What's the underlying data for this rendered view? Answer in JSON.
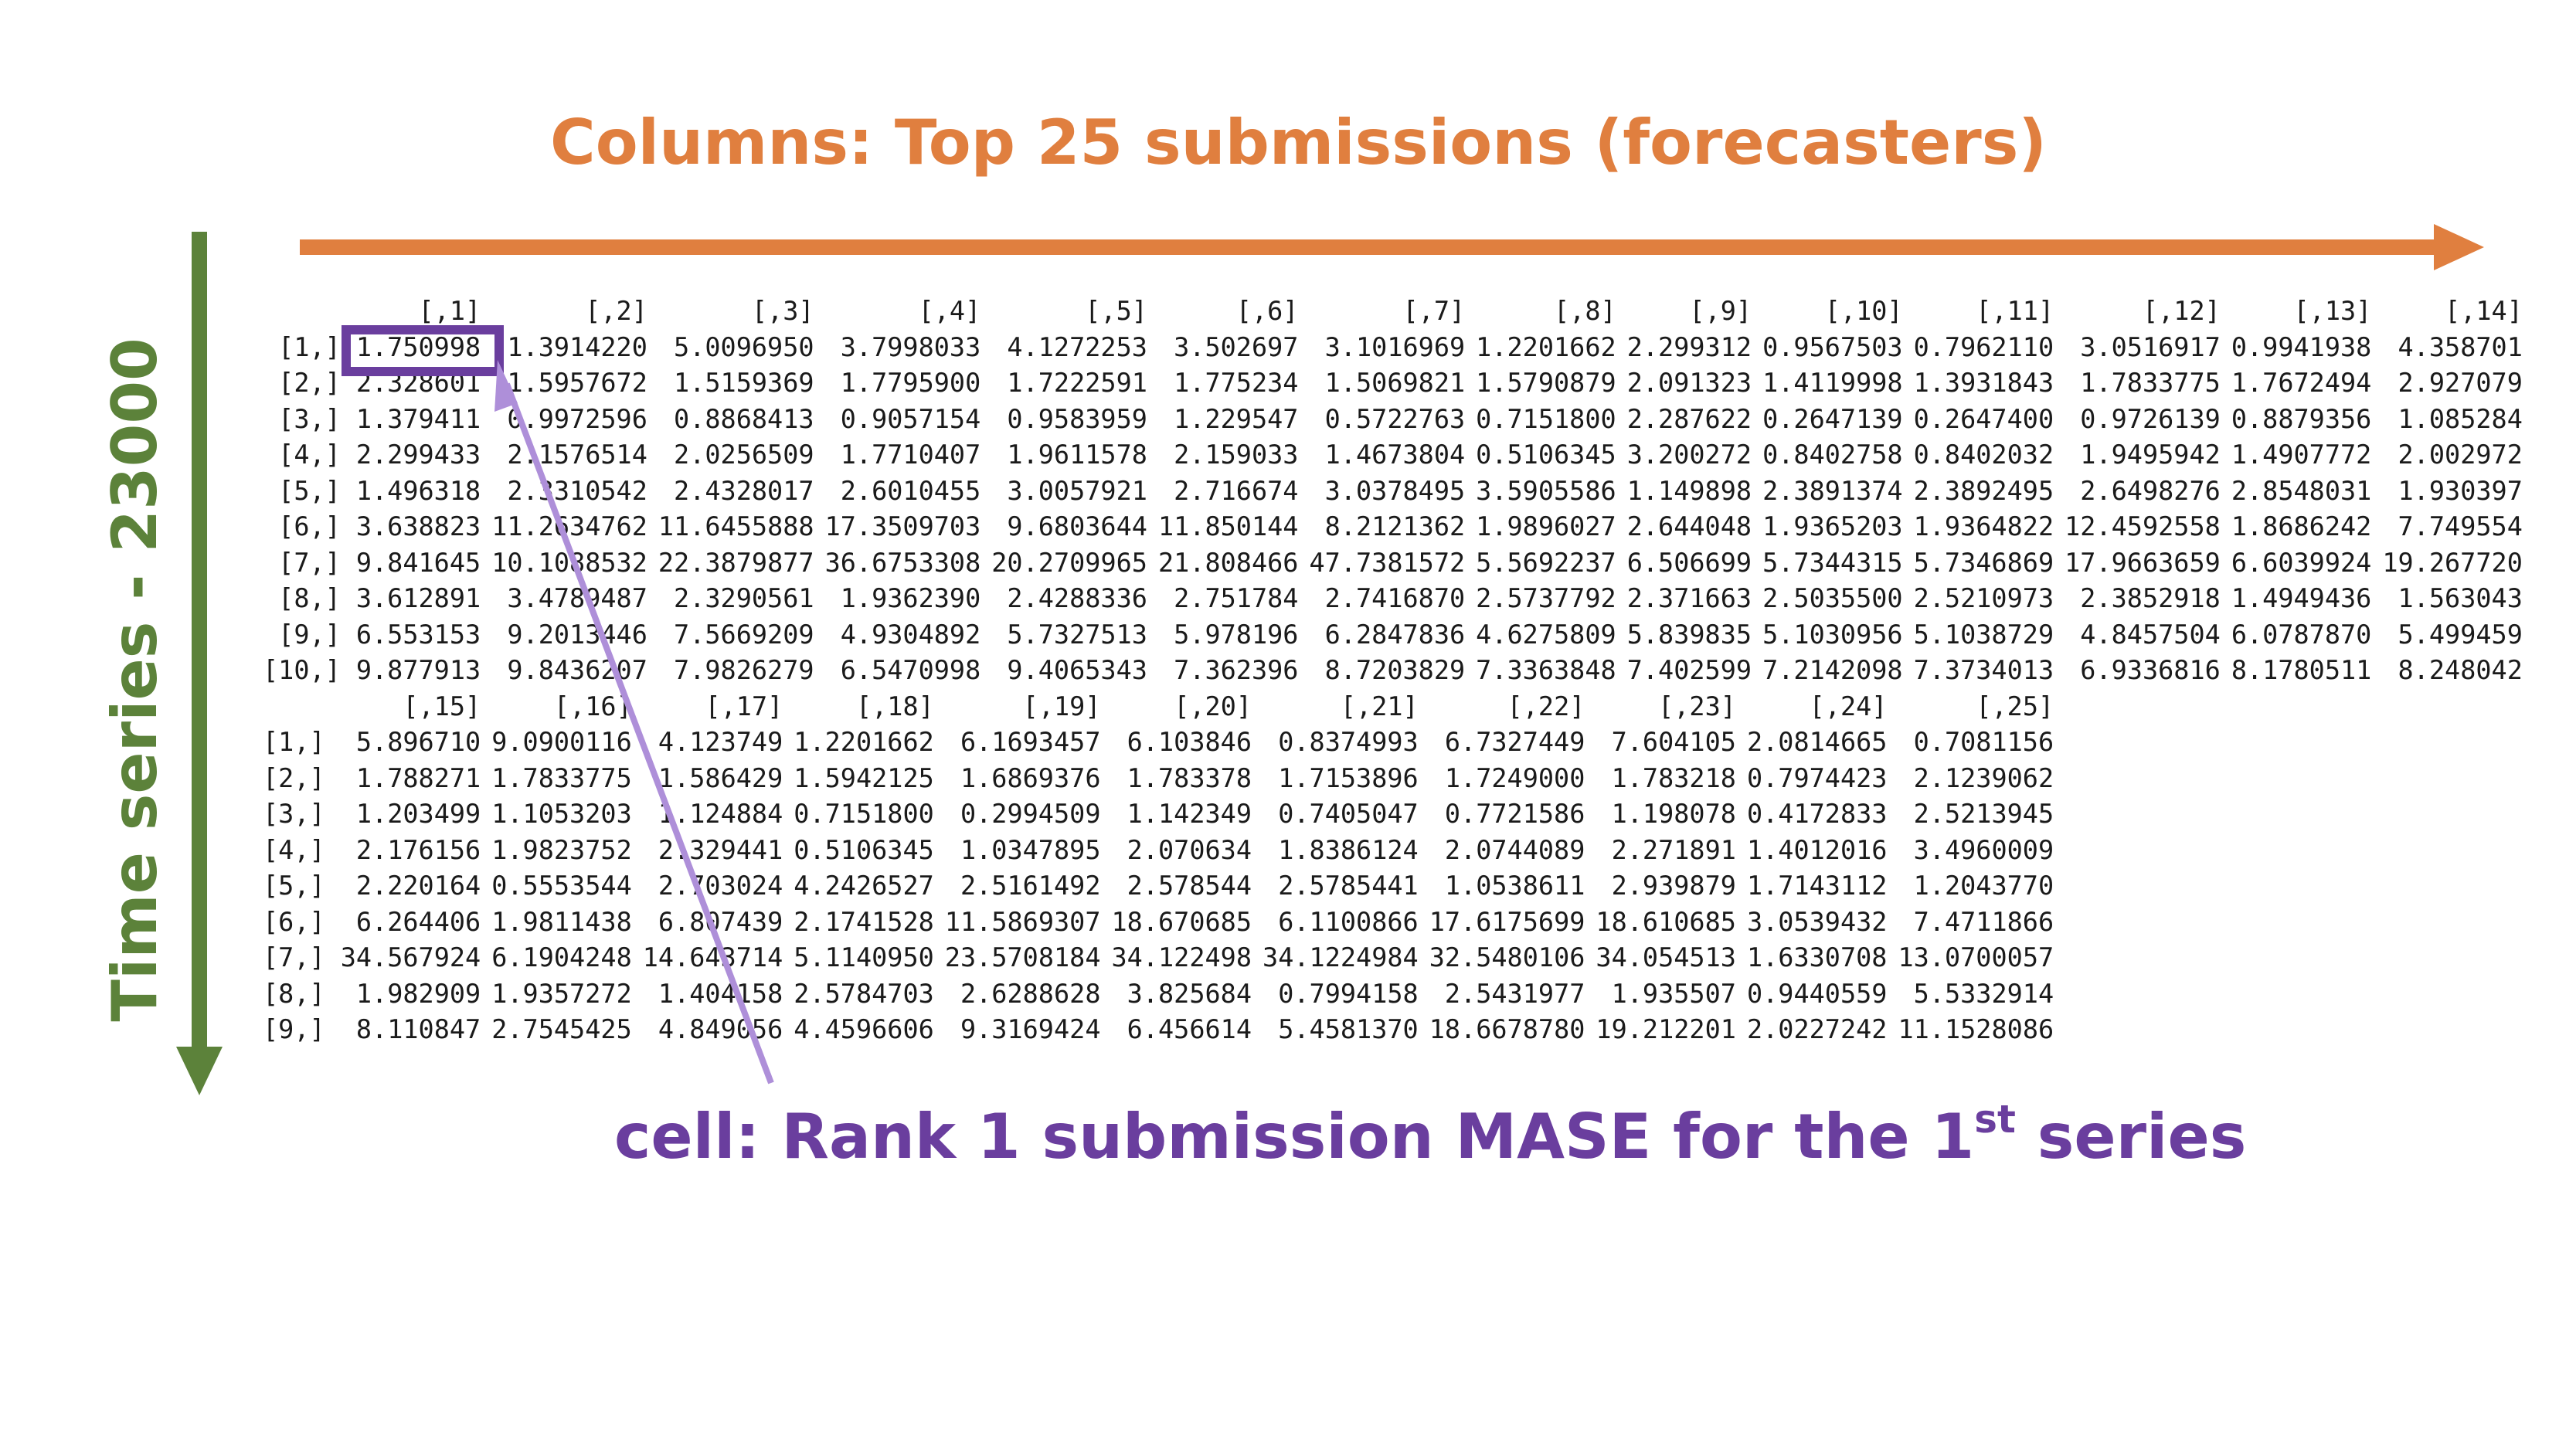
{
  "colors": {
    "orange": "#E07F3F",
    "green": "#5C823A",
    "purple": "#6A3E9E",
    "lavender": "#AE8FD9"
  },
  "titles": {
    "columns": "Columns: Top 25 submissions (forecasters)",
    "rows": "Time series - 23000",
    "cell_prefix": "cell: Rank 1 submission MASE for the 1",
    "cell_sup": "st",
    "cell_suffix": " series"
  },
  "matrix": {
    "blocks": [
      {
        "row_labels": [
          "[1,]",
          "[2,]",
          "[3,]",
          "[4,]",
          "[5,]",
          "[6,]",
          "[7,]",
          "[8,]",
          "[9,]",
          "[10,]"
        ],
        "columns": [
          {
            "header": "[,1]",
            "values": [
              "1.750998",
              "2.328601",
              "1.379411",
              "2.299433",
              "1.496318",
              "3.638823",
              "9.841645",
              "3.612891",
              "6.553153",
              "9.877913"
            ]
          },
          {
            "header": "[,2]",
            "values": [
              "1.3914220",
              "1.5957672",
              "0.9972596",
              "2.1576514",
              "2.3310542",
              "11.2634762",
              "10.1088532",
              "3.4789487",
              "9.2013446",
              "9.8436207"
            ]
          },
          {
            "header": "[,3]",
            "values": [
              "5.0096950",
              "1.5159369",
              "0.8868413",
              "2.0256509",
              "2.4328017",
              "11.6455888",
              "22.3879877",
              "2.3290561",
              "7.5669209",
              "7.9826279"
            ]
          },
          {
            "header": "[,4]",
            "values": [
              "3.7998033",
              "1.7795900",
              "0.9057154",
              "1.7710407",
              "2.6010455",
              "17.3509703",
              "36.6753308",
              "1.9362390",
              "4.9304892",
              "6.5470998"
            ]
          },
          {
            "header": "[,5]",
            "values": [
              "4.1272253",
              "1.7222591",
              "0.9583959",
              "1.9611578",
              "3.0057921",
              "9.6803644",
              "20.2709965",
              "2.4288336",
              "5.7327513",
              "9.4065343"
            ]
          },
          {
            "header": "[,6]",
            "values": [
              "3.502697",
              "1.775234",
              "1.229547",
              "2.159033",
              "2.716674",
              "11.850144",
              "21.808466",
              "2.751784",
              "5.978196",
              "7.362396"
            ]
          },
          {
            "header": "[,7]",
            "values": [
              "3.1016969",
              "1.5069821",
              "0.5722763",
              "1.4673804",
              "3.0378495",
              "8.2121362",
              "47.7381572",
              "2.7416870",
              "6.2847836",
              "8.7203829"
            ]
          },
          {
            "header": "[,8]",
            "values": [
              "1.2201662",
              "1.5790879",
              "0.7151800",
              "0.5106345",
              "3.5905586",
              "1.9896027",
              "5.5692237",
              "2.5737792",
              "4.6275809",
              "7.3363848"
            ]
          },
          {
            "header": "[,9]",
            "values": [
              "2.299312",
              "2.091323",
              "2.287622",
              "3.200272",
              "1.149898",
              "2.644048",
              "6.506699",
              "2.371663",
              "5.839835",
              "7.402599"
            ]
          },
          {
            "header": "[,10]",
            "values": [
              "0.9567503",
              "1.4119998",
              "0.2647139",
              "0.8402758",
              "2.3891374",
              "1.9365203",
              "5.7344315",
              "2.5035500",
              "5.1030956",
              "7.2142098"
            ]
          },
          {
            "header": "[,11]",
            "values": [
              "0.7962110",
              "1.3931843",
              "0.2647400",
              "0.8402032",
              "2.3892495",
              "1.9364822",
              "5.7346869",
              "2.5210973",
              "5.1038729",
              "7.3734013"
            ]
          },
          {
            "header": "[,12]",
            "values": [
              "3.0516917",
              "1.7833775",
              "0.9726139",
              "1.9495942",
              "2.6498276",
              "12.4592558",
              "17.9663659",
              "2.3852918",
              "4.8457504",
              "6.9336816"
            ]
          },
          {
            "header": "[,13]",
            "values": [
              "0.9941938",
              "1.7672494",
              "0.8879356",
              "1.4907772",
              "2.8548031",
              "1.8686242",
              "6.6039924",
              "1.4949436",
              "6.0787870",
              "8.1780511"
            ]
          },
          {
            "header": "[,14]",
            "values": [
              "4.358701",
              "2.927079",
              "1.085284",
              "2.002972",
              "1.930397",
              "7.749554",
              "19.267720",
              "1.563043",
              "5.499459",
              "8.248042"
            ]
          }
        ]
      },
      {
        "row_labels": [
          "[1,]",
          "[2,]",
          "[3,]",
          "[4,]",
          "[5,]",
          "[6,]",
          "[7,]",
          "[8,]",
          "[9,]"
        ],
        "columns": [
          {
            "header": "[,15]",
            "values": [
              "5.896710",
              "1.788271",
              "1.203499",
              "2.176156",
              "2.220164",
              "6.264406",
              "34.567924",
              "1.982909",
              "8.110847"
            ]
          },
          {
            "header": "[,16]",
            "values": [
              "9.0900116",
              "1.7833775",
              "1.1053203",
              "1.9823752",
              "0.5553544",
              "1.9811438",
              "6.1904248",
              "1.9357272",
              "2.7545425"
            ]
          },
          {
            "header": "[,17]",
            "values": [
              "4.123749",
              "1.586429",
              "1.124884",
              "2.329441",
              "2.703024",
              "6.807439",
              "14.643714",
              "1.404158",
              "4.849056"
            ]
          },
          {
            "header": "[,18]",
            "values": [
              "1.2201662",
              "1.5942125",
              "0.7151800",
              "0.5106345",
              "4.2426527",
              "2.1741528",
              "5.1140950",
              "2.5784703",
              "4.4596606"
            ]
          },
          {
            "header": "[,19]",
            "values": [
              "6.1693457",
              "1.6869376",
              "0.2994509",
              "1.0347895",
              "2.5161492",
              "11.5869307",
              "23.5708184",
              "2.6288628",
              "9.3169424"
            ]
          },
          {
            "header": "[,20]",
            "values": [
              "6.103846",
              "1.783378",
              "1.142349",
              "2.070634",
              "2.578544",
              "18.670685",
              "34.122498",
              "3.825684",
              "6.456614"
            ]
          },
          {
            "header": "[,21]",
            "values": [
              "0.8374993",
              "1.7153896",
              "0.7405047",
              "1.8386124",
              "2.5785441",
              "6.1100866",
              "34.1224984",
              "0.7994158",
              "5.4581370"
            ]
          },
          {
            "header": "[,22]",
            "values": [
              "6.7327449",
              "1.7249000",
              "0.7721586",
              "2.0744089",
              "1.0538611",
              "17.6175699",
              "32.5480106",
              "2.5431977",
              "18.6678780"
            ]
          },
          {
            "header": "[,23]",
            "values": [
              "7.604105",
              "1.783218",
              "1.198078",
              "2.271891",
              "2.939879",
              "18.610685",
              "34.054513",
              "1.935507",
              "19.212201"
            ]
          },
          {
            "header": "[,24]",
            "values": [
              "2.0814665",
              "0.7974423",
              "0.4172833",
              "1.4012016",
              "1.7143112",
              "3.0539432",
              "1.6330708",
              "0.9440559",
              "2.0227242"
            ]
          },
          {
            "header": "[,25]",
            "values": [
              "0.7081156",
              "2.1239062",
              "2.5213945",
              "3.4960009",
              "1.2043770",
              "7.4711866",
              "13.0700057",
              "5.5332914",
              "11.1528086"
            ]
          }
        ]
      }
    ]
  }
}
